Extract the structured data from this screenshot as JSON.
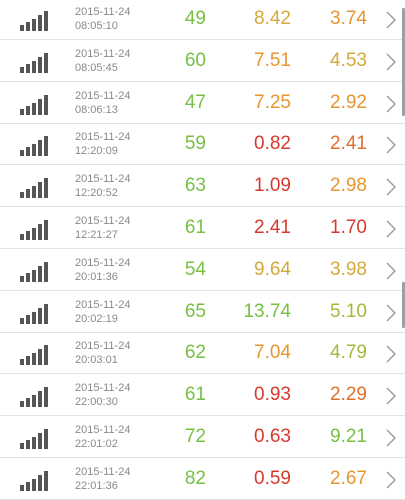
{
  "colors": {
    "green": "#76c043",
    "yellow_green": "#a8b73a",
    "amber": "#d4a93a",
    "orange": "#e69530",
    "red": "#d63a2f",
    "icon": "#555555"
  },
  "rows": [
    {
      "date": "2015-11-24",
      "time": "08:05:10",
      "ping": "49",
      "download": "8.42",
      "upload": "3.74",
      "ping_color": "#76c043",
      "download_color": "#d4a93a",
      "upload_color": "#e69530"
    },
    {
      "date": "2015-11-24",
      "time": "08:05:45",
      "ping": "60",
      "download": "7.51",
      "upload": "4.53",
      "ping_color": "#76c043",
      "download_color": "#e69530",
      "upload_color": "#d4a93a"
    },
    {
      "date": "2015-11-24",
      "time": "08:06:13",
      "ping": "47",
      "download": "7.25",
      "upload": "2.92",
      "ping_color": "#76c043",
      "download_color": "#e69530",
      "upload_color": "#e69530"
    },
    {
      "date": "2015-11-24",
      "time": "12:20:09",
      "ping": "59",
      "download": "0.82",
      "upload": "2.41",
      "ping_color": "#76c043",
      "download_color": "#d63a2f",
      "upload_color": "#e0702d"
    },
    {
      "date": "2015-11-24",
      "time": "12:20:52",
      "ping": "63",
      "download": "1.09",
      "upload": "2.98",
      "ping_color": "#76c043",
      "download_color": "#d63a2f",
      "upload_color": "#e69530"
    },
    {
      "date": "2015-11-24",
      "time": "12:21:27",
      "ping": "61",
      "download": "2.41",
      "upload": "1.70",
      "ping_color": "#76c043",
      "download_color": "#d63a2f",
      "upload_color": "#d63a2f"
    },
    {
      "date": "2015-11-24",
      "time": "20:01:36",
      "ping": "54",
      "download": "9.64",
      "upload": "3.98",
      "ping_color": "#76c043",
      "download_color": "#d4a93a",
      "upload_color": "#d4a93a"
    },
    {
      "date": "2015-11-24",
      "time": "20:02:19",
      "ping": "65",
      "download": "13.74",
      "upload": "5.10",
      "ping_color": "#76c043",
      "download_color": "#76c043",
      "upload_color": "#a8b73a"
    },
    {
      "date": "2015-11-24",
      "time": "20:03:01",
      "ping": "62",
      "download": "7.04",
      "upload": "4.79",
      "ping_color": "#76c043",
      "download_color": "#e69530",
      "upload_color": "#a8b73a"
    },
    {
      "date": "2015-11-24",
      "time": "22:00:30",
      "ping": "61",
      "download": "0.93",
      "upload": "2.29",
      "ping_color": "#76c043",
      "download_color": "#d63a2f",
      "upload_color": "#e0702d"
    },
    {
      "date": "2015-11-24",
      "time": "22:01:02",
      "ping": "72",
      "download": "0.63",
      "upload": "9.21",
      "ping_color": "#76c043",
      "download_color": "#d63a2f",
      "upload_color": "#76c043"
    },
    {
      "date": "2015-11-24",
      "time": "22:01:36",
      "ping": "82",
      "download": "0.59",
      "upload": "2.67",
      "ping_color": "#76c043",
      "download_color": "#d63a2f",
      "upload_color": "#e69530"
    }
  ]
}
